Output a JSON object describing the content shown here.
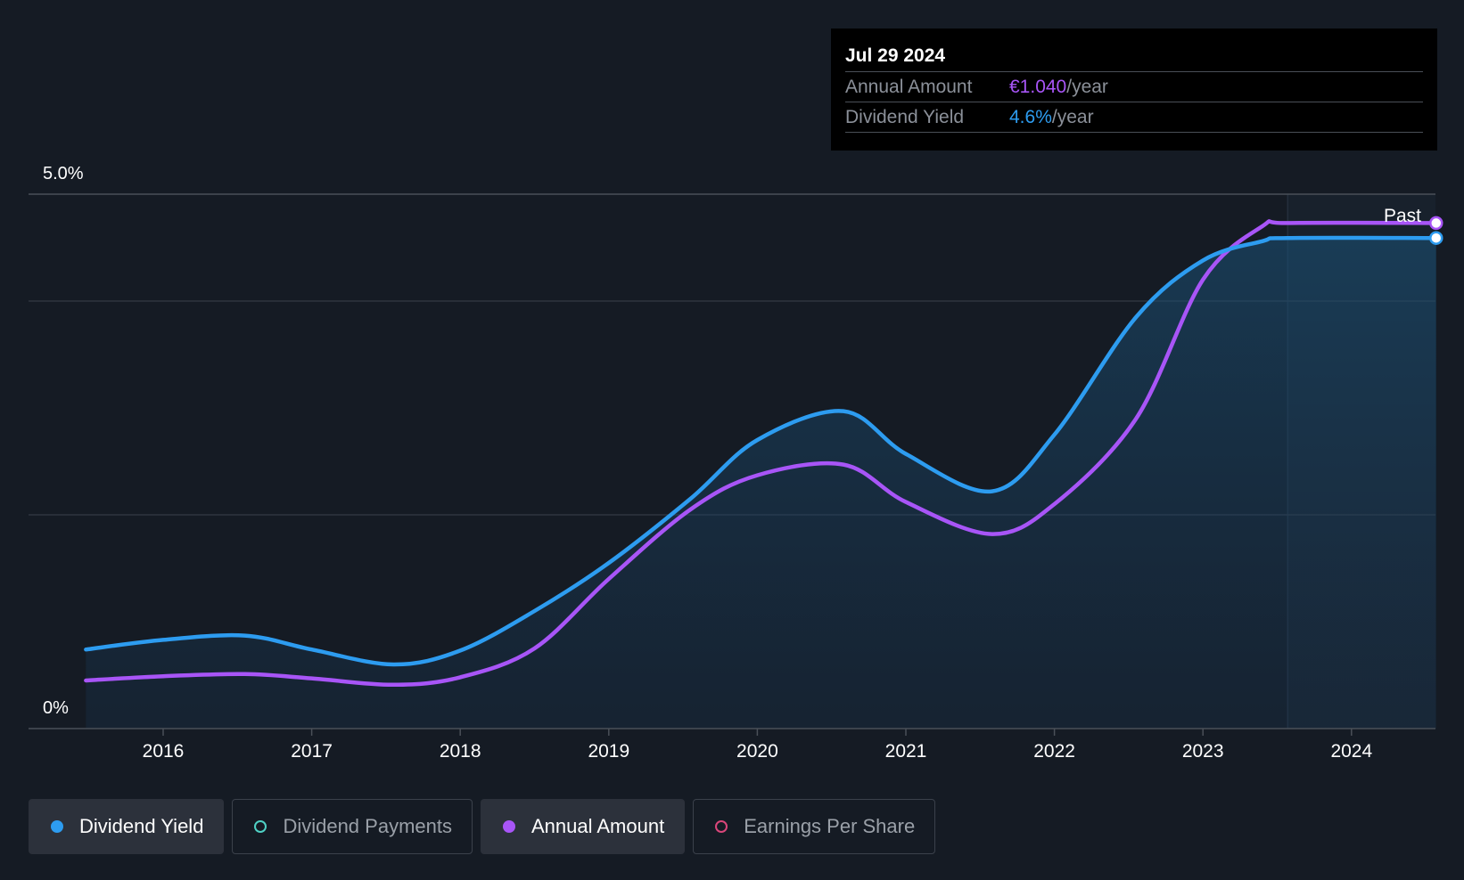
{
  "tooltip": {
    "date": "Jul 29 2024",
    "rows": [
      {
        "label": "Annual Amount",
        "value": "€1.040",
        "unit": "/year",
        "color": "#a855f7"
      },
      {
        "label": "Dividend Yield",
        "value": "4.6%",
        "unit": "/year",
        "color": "#2d9cf0"
      }
    ]
  },
  "legend": [
    {
      "label": "Dividend Yield",
      "color": "#2d9cf0",
      "filled": true,
      "active": true
    },
    {
      "label": "Dividend Payments",
      "color": "#4fd1c5",
      "filled": false,
      "active": false
    },
    {
      "label": "Annual Amount",
      "color": "#a855f7",
      "filled": true,
      "active": true
    },
    {
      "label": "Earnings Per Share",
      "color": "#d9467a",
      "filled": false,
      "active": false
    }
  ],
  "chart_data": {
    "type": "line",
    "y_tick_labels": [
      "5.0%",
      "0%"
    ],
    "ylim": [
      0,
      5.0
    ],
    "x_tick_labels": [
      "2016",
      "2017",
      "2018",
      "2019",
      "2020",
      "2021",
      "2022",
      "2023",
      "2024"
    ],
    "xlim": [
      2015.1,
      2024.57
    ],
    "past_label": "Past",
    "past_start": 2023.57,
    "series": [
      {
        "name": "Dividend Yield",
        "color": "#2d9cf0",
        "x": [
          2015.48,
          2016.0,
          2016.55,
          2017.0,
          2017.55,
          2018.0,
          2018.5,
          2019.0,
          2019.55,
          2020.0,
          2020.58,
          2021.0,
          2021.58,
          2022.0,
          2022.55,
          2023.0,
          2023.4,
          2023.57,
          2024.57
        ],
        "y": [
          0.74,
          0.83,
          0.87,
          0.74,
          0.6,
          0.73,
          1.1,
          1.55,
          2.15,
          2.7,
          2.97,
          2.57,
          2.22,
          2.75,
          3.85,
          4.38,
          4.56,
          4.59,
          4.59
        ]
      },
      {
        "name": "Annual Amount",
        "color": "#a855f7",
        "x": [
          2015.48,
          2016.0,
          2016.55,
          2017.0,
          2017.55,
          2018.0,
          2018.5,
          2019.0,
          2019.55,
          2020.0,
          2020.58,
          2021.0,
          2021.58,
          2022.0,
          2022.55,
          2023.0,
          2023.4,
          2023.57,
          2024.57
        ],
        "y": [
          0.45,
          0.49,
          0.51,
          0.47,
          0.41,
          0.48,
          0.75,
          1.4,
          2.05,
          2.37,
          2.47,
          2.12,
          1.82,
          2.1,
          2.9,
          4.2,
          4.7,
          4.73,
          4.73
        ]
      }
    ]
  }
}
